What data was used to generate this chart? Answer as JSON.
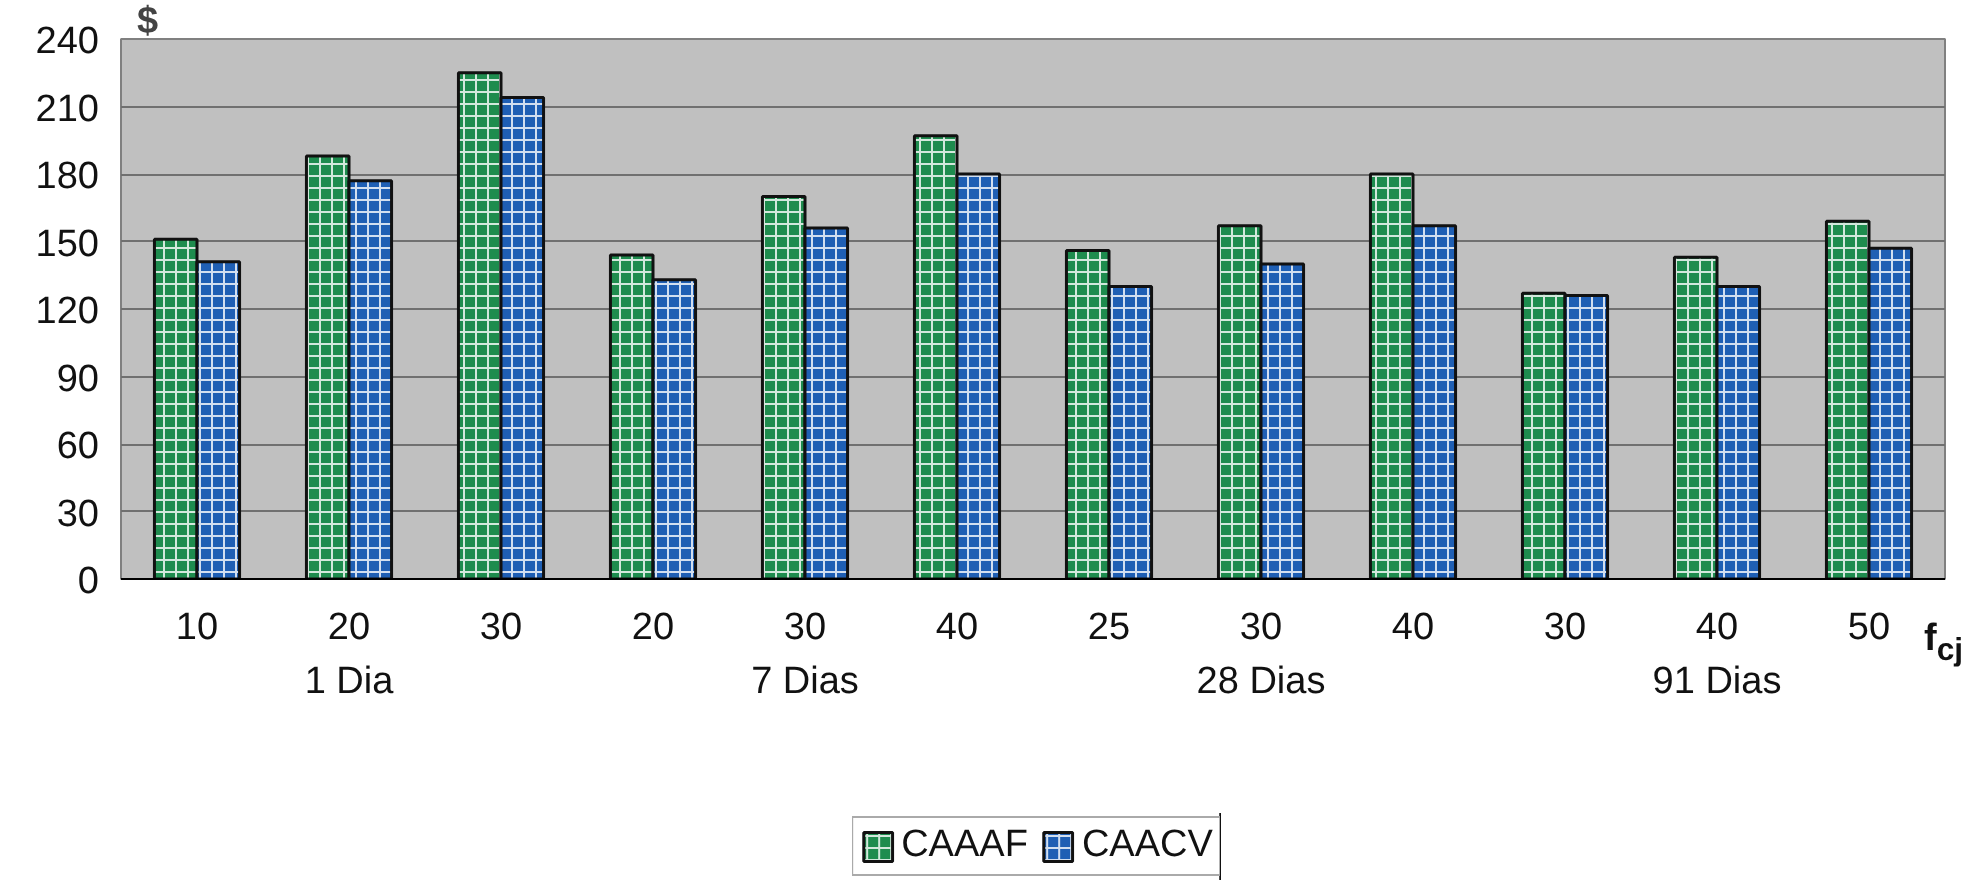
{
  "chart_data": {
    "type": "bar",
    "ylabel": "$",
    "xlabel": "f$_{cj}$",
    "categories": [
      "10",
      "20",
      "30",
      "20",
      "30",
      "40",
      "25",
      "30",
      "40",
      "30",
      "40",
      "50"
    ],
    "annotations": [
      "1 Dia",
      "7 Dias",
      "28 Dias",
      "91 Dias"
    ],
    "series": [
      {
        "name": "CAAAF",
        "color": "#1e8c4e",
        "values": [
          151,
          188,
          225,
          144,
          170,
          197,
          146,
          157,
          180,
          127,
          143,
          159
        ]
      },
      {
        "name": "CAACV",
        "color": "#1f5fb4",
        "values": [
          141,
          177,
          214,
          133,
          156,
          180,
          130,
          140,
          157,
          126,
          130,
          147
        ]
      }
    ],
    "ylim": [
      0,
      240
    ],
    "yticks": [
      0,
      30,
      60,
      90,
      120,
      150,
      180,
      210,
      240
    ],
    "grid": "y",
    "legend": "bottom"
  }
}
